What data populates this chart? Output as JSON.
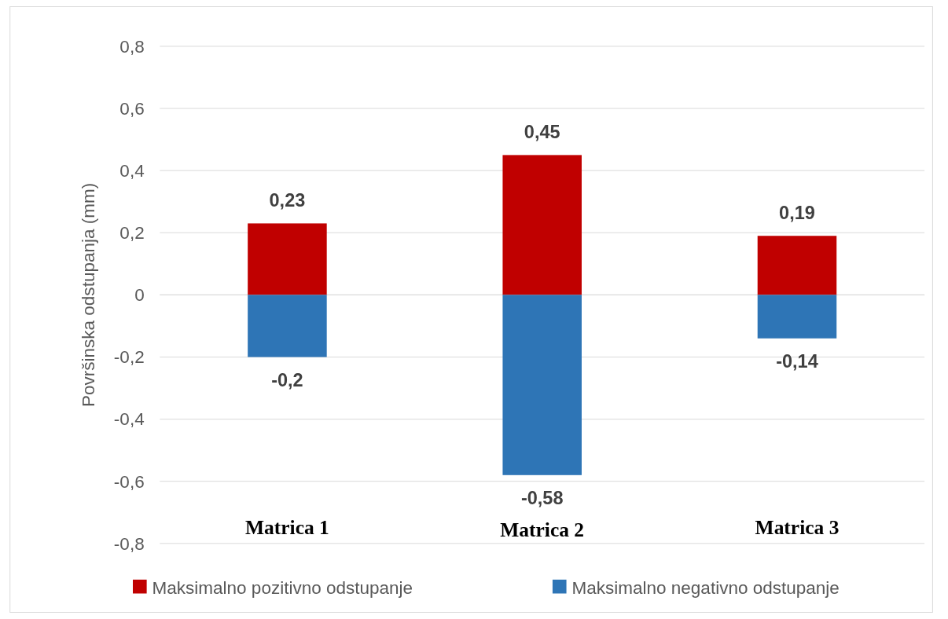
{
  "chart_data": {
    "type": "bar",
    "ylabel": "Površinska odstupanja (mm)",
    "categories": [
      "Matrica 1",
      "Matrica 2",
      "Matrica 3"
    ],
    "series": [
      {
        "name": "Maksimalno pozitivno odstupanje",
        "color": "#c00000",
        "values": [
          0.23,
          0.45,
          0.19
        ],
        "value_labels": [
          "0,23",
          "0,45",
          "0,19"
        ]
      },
      {
        "name": "Maksimalno negativno odstupanje",
        "color": "#2e75b6",
        "values": [
          -0.2,
          -0.58,
          -0.14
        ],
        "value_labels": [
          "-0,2",
          "-0,58",
          "-0,14"
        ]
      }
    ],
    "stacked": true,
    "ylim": [
      -0.8,
      0.8
    ],
    "yticks": [
      {
        "value": -0.8,
        "label": "-0,8"
      },
      {
        "value": -0.6,
        "label": "-0,6"
      },
      {
        "value": -0.4,
        "label": "-0,4"
      },
      {
        "value": -0.2,
        "label": "-0,2"
      },
      0,
      {
        "value": 0.2,
        "label": "0,2"
      },
      {
        "value": 0.4,
        "label": "0,4"
      },
      {
        "value": 0.6,
        "label": "0,6"
      },
      {
        "value": 0.8,
        "label": "0,8"
      }
    ],
    "grid": "y",
    "legend": "bottom"
  }
}
